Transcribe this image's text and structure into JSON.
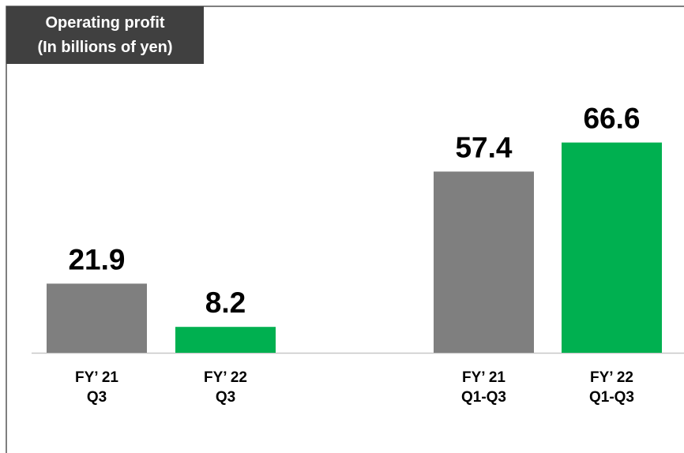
{
  "chart_data": {
    "type": "bar",
    "title": [
      "Operating profit",
      "(In billions of yen)"
    ],
    "categories": [
      [
        "FY’ 21",
        "Q3"
      ],
      [
        "FY’ 22",
        "Q3"
      ],
      [
        "FY’ 21",
        "Q1-Q3"
      ],
      [
        "FY’ 22",
        "Q1-Q3"
      ]
    ],
    "values": [
      21.9,
      8.2,
      57.4,
      66.6
    ],
    "colors": [
      "#7f7f7f",
      "#00b050",
      "#7f7f7f",
      "#00b050"
    ],
    "ylim": [
      0,
      75
    ]
  }
}
